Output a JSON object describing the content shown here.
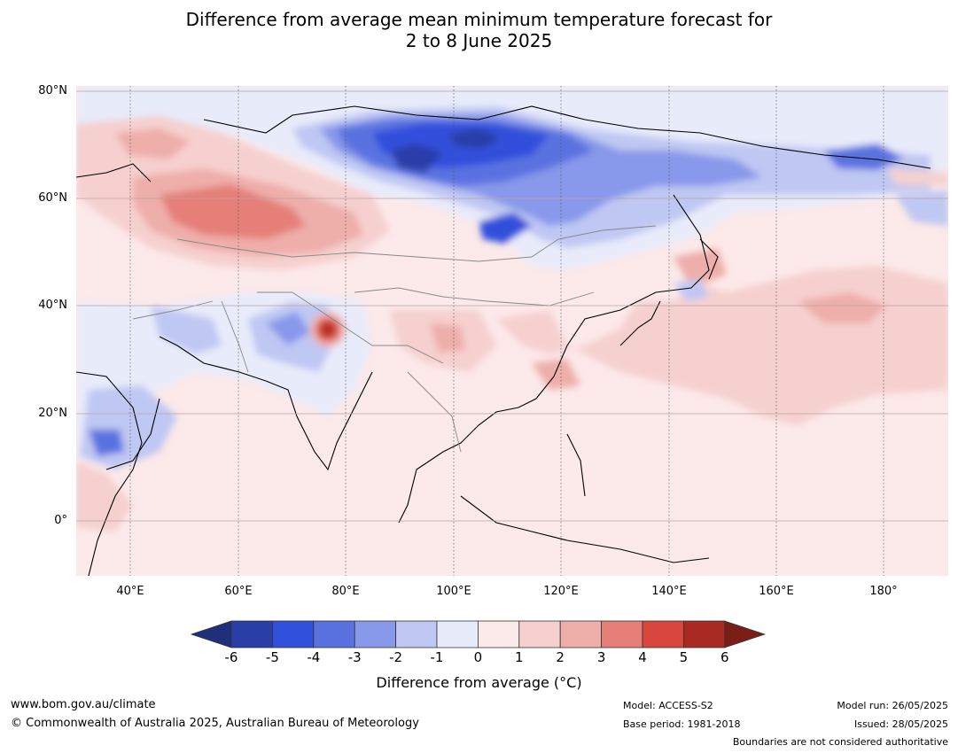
{
  "title_line1": "Difference from average mean minimum temperature forecast for",
  "title_line2": "2 to 8 June 2025",
  "lat_labels": [
    "80°N",
    "60°N",
    "40°N",
    "20°N",
    "0°"
  ],
  "lon_labels": [
    "40°E",
    "60°E",
    "80°E",
    "100°E",
    "120°E",
    "140°E",
    "160°E",
    "180°"
  ],
  "colorbar": {
    "ticks": [
      "-6",
      "-5",
      "-4",
      "-3",
      "-2",
      "-1",
      "0",
      "1",
      "2",
      "3",
      "4",
      "5",
      "6"
    ],
    "colors": [
      "#1f2f7a",
      "#2a3ea8",
      "#3150dc",
      "#5a72e0",
      "#8898ea",
      "#bfc7f3",
      "#e8ebfa",
      "#fce9e9",
      "#f5d0cf",
      "#eeaeaa",
      "#e57f78",
      "#d8463d",
      "#a82a22",
      "#7a1f18"
    ],
    "label": "Difference from average (°C)"
  },
  "footer": {
    "website": "www.bom.gov.au/climate",
    "copyright": "© Commonwealth of Australia 2025, Australian Bureau of Meteorology",
    "model": "Model: ACCESS-S2",
    "base_period": "Base period: 1981-2018",
    "model_run": "Model run: 26/05/2025",
    "issued": "Issued: 28/05/2025",
    "disclaimer": "Boundaries are not considered authoritative"
  }
}
